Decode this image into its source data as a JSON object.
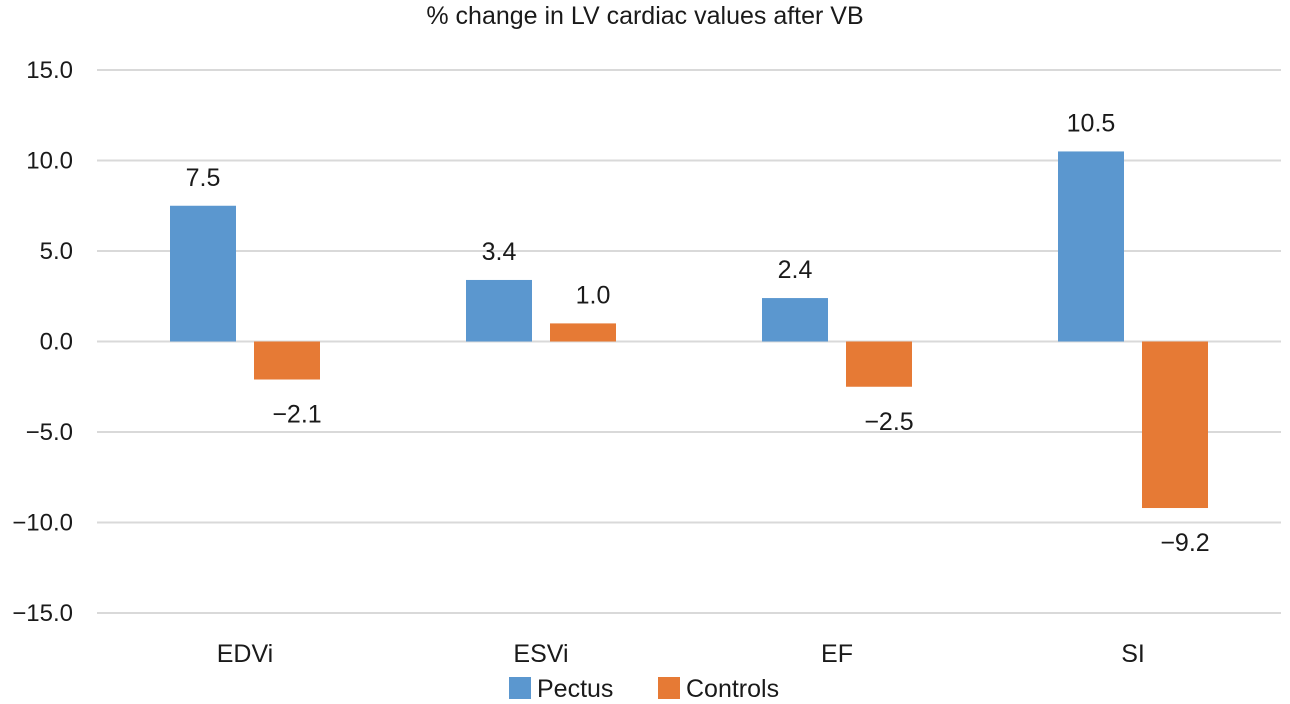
{
  "chart_data": {
    "type": "bar",
    "title": "% change in LV cardiac values after VB",
    "xlabel": "",
    "ylabel": "",
    "categories": [
      "EDVi",
      "ESVi",
      "EF",
      "SI"
    ],
    "series": [
      {
        "name": "Pectus",
        "color": "#5b97cf",
        "values": [
          7.5,
          3.4,
          2.4,
          10.5
        ],
        "labels": [
          "7.5",
          "3.4",
          "2.4",
          "10.5"
        ]
      },
      {
        "name": "Controls",
        "color": "#e67a35",
        "values": [
          -2.1,
          1.0,
          -2.5,
          -9.2
        ],
        "labels": [
          "−2.1",
          "1.0",
          "−2.5",
          "−9.2"
        ]
      }
    ],
    "ylim": [
      -15,
      15
    ],
    "yticks": [
      15,
      10,
      5,
      0,
      -5,
      -10,
      -15
    ],
    "ytick_labels": [
      "15.0",
      "10.0",
      "5.0",
      "0.0",
      "−5.0",
      "−10.0",
      "−15.0"
    ],
    "grid": true,
    "legend_position": "bottom"
  }
}
